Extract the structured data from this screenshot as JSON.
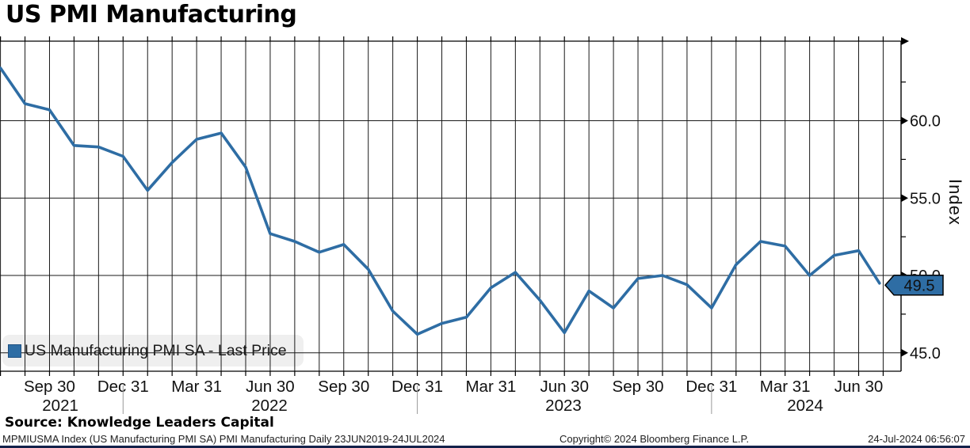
{
  "title": "US PMI Manufacturing",
  "legend": {
    "label": "US Manufacturing PMI SA - Last Price",
    "swatch_color": "#2e6da4"
  },
  "y_axis": {
    "title": "Index",
    "major_ticks": [
      {
        "value": 45.0,
        "label": "45.0"
      },
      {
        "value": 50.0,
        "label": "50.0"
      },
      {
        "value": 55.0,
        "label": "55.0"
      },
      {
        "value": 60.0,
        "label": "60.0"
      }
    ],
    "minor_tick_values": [
      47.5,
      52.5,
      57.5,
      62.5
    ]
  },
  "last_price": {
    "value": "49.5",
    "bg_color": "#2e6da4",
    "text_color": "#ffffff"
  },
  "footer": {
    "source": "Source: Knowledge Leaders Capital",
    "ticker": "MPMIUSMA Index (US Manufacturing PMI SA) PMI Manufacturing  Daily 23JUN2019-24JUL2024",
    "copyright": "Copyright© 2024 Bloomberg Finance L.P.",
    "timestamp": "24-Jul-2024 06:56:07"
  },
  "chart_data": {
    "type": "line",
    "title": "US PMI Manufacturing",
    "ylabel": "Index",
    "ylim": [
      43.7,
      65.3
    ],
    "grid": true,
    "legend_position": "bottom-left",
    "x_start": "Jul 2021",
    "x_end": "24 Jul 2024",
    "months": [
      "Jul 2021",
      "Aug 2021",
      "Sep 2021",
      "Oct 2021",
      "Nov 2021",
      "Dec 2021",
      "Jan 2022",
      "Feb 2022",
      "Mar 2022",
      "Apr 2022",
      "May 2022",
      "Jun 2022",
      "Jul 2022",
      "Aug 2022",
      "Sep 2022",
      "Oct 2022",
      "Nov 2022",
      "Dec 2022",
      "Jan 2023",
      "Feb 2023",
      "Mar 2023",
      "Apr 2023",
      "May 2023",
      "Jun 2023",
      "Jul 2023",
      "Aug 2023",
      "Sep 2023",
      "Oct 2023",
      "Nov 2023",
      "Dec 2023",
      "Jan 2024",
      "Feb 2024",
      "Mar 2024",
      "Apr 2024",
      "May 2024",
      "Jun 2024",
      "Jul 2024"
    ],
    "series": [
      {
        "name": "US Manufacturing PMI SA - Last Price",
        "color": "#2e6da4",
        "values": [
          63.4,
          61.1,
          60.7,
          58.4,
          58.3,
          57.7,
          55.5,
          57.3,
          58.8,
          59.2,
          57.0,
          52.7,
          52.2,
          51.5,
          52.0,
          50.4,
          47.7,
          46.2,
          46.9,
          47.3,
          49.2,
          50.2,
          48.4,
          46.3,
          49.0,
          47.9,
          49.8,
          50.0,
          49.4,
          47.9,
          50.7,
          52.2,
          51.9,
          50.0,
          51.3,
          51.6,
          49.5
        ]
      }
    ],
    "x_ticks": [
      {
        "i": 2,
        "label": "Sep 30"
      },
      {
        "i": 5,
        "label": "Dec 31"
      },
      {
        "i": 8,
        "label": "Mar 31"
      },
      {
        "i": 11,
        "label": "Jun 30"
      },
      {
        "i": 14,
        "label": "Sep 30"
      },
      {
        "i": 17,
        "label": "Dec 31"
      },
      {
        "i": 20,
        "label": "Mar 31"
      },
      {
        "i": 23,
        "label": "Jun 30"
      },
      {
        "i": 26,
        "label": "Sep 30"
      },
      {
        "i": 29,
        "label": "Dec 31"
      },
      {
        "i": 32,
        "label": "Mar 31"
      },
      {
        "i": 35,
        "label": "Jun 30"
      }
    ],
    "years": [
      {
        "xi": 2.44,
        "label": "2021"
      },
      {
        "xi": 10.97,
        "label": "2022"
      },
      {
        "xi": 22.96,
        "label": "2023"
      },
      {
        "xi": 32.82,
        "label": "2024"
      }
    ],
    "year_separators_xi": [
      5,
      17,
      29
    ]
  }
}
